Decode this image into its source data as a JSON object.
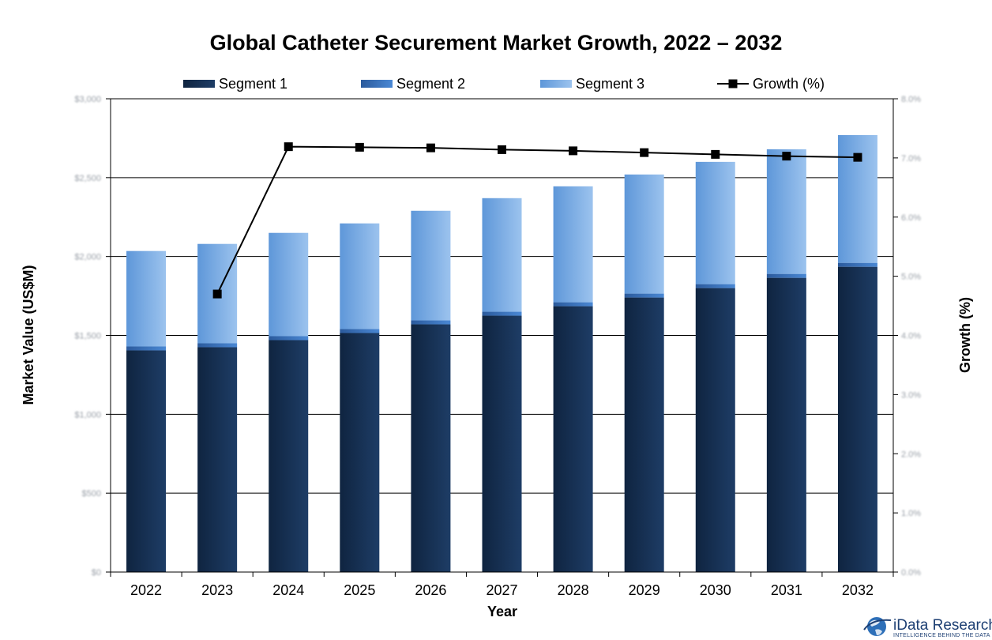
{
  "chart_data": {
    "type": "bar",
    "stacked": true,
    "title": "Global Catheter Securement Market Growth, 2022 – 2032",
    "xlabel": "Year",
    "ylabel": "Market Value (US$M)",
    "y2label": "Growth (%)",
    "categories": [
      "2022",
      "2023",
      "2024",
      "2025",
      "2026",
      "2027",
      "2028",
      "2029",
      "2030",
      "2031",
      "2032"
    ],
    "ylim": [
      0,
      6
    ],
    "y2lim": [
      0,
      8
    ],
    "yticks": [
      0,
      1,
      2,
      3,
      4,
      5,
      6
    ],
    "y2ticks": [
      0,
      1,
      2,
      3,
      4,
      5,
      6,
      7,
      8
    ],
    "y_tick_labels": [
      "$0",
      "$500",
      "$1,000",
      "$1,500",
      "$2,000",
      "$2,500",
      "$3,000"
    ],
    "y2_tick_labels": [
      "0.0%",
      "1.0%",
      "2.0%",
      "3.0%",
      "4.0%",
      "5.0%",
      "6.0%",
      "7.0%",
      "8.0%"
    ],
    "series": [
      {
        "name": "Segment 1",
        "kind": "bar",
        "color": "#16304f",
        "values": [
          2.81,
          2.85,
          2.94,
          3.03,
          3.14,
          3.25,
          3.37,
          3.48,
          3.6,
          3.73,
          3.87
        ]
      },
      {
        "name": "Segment 2",
        "kind": "bar",
        "color": "#3a74c2",
        "values": [
          0.05,
          0.05,
          0.05,
          0.05,
          0.05,
          0.05,
          0.05,
          0.05,
          0.05,
          0.05,
          0.05
        ]
      },
      {
        "name": "Segment 3",
        "kind": "bar",
        "color": "#7aaee6",
        "values": [
          1.21,
          1.26,
          1.31,
          1.34,
          1.39,
          1.44,
          1.47,
          1.51,
          1.55,
          1.58,
          1.62
        ]
      },
      {
        "name": "Growth (%)",
        "kind": "line",
        "axis": "right",
        "color": "#000000",
        "values": [
          null,
          4.7,
          7.19,
          7.18,
          7.17,
          7.14,
          7.12,
          7.09,
          7.06,
          7.03,
          7.01
        ]
      }
    ],
    "grid": true,
    "legend_position": "top"
  },
  "branding": {
    "logo_name": "iData Research",
    "logo_tagline": "INTELLIGENCE BEHIND THE DATA"
  }
}
